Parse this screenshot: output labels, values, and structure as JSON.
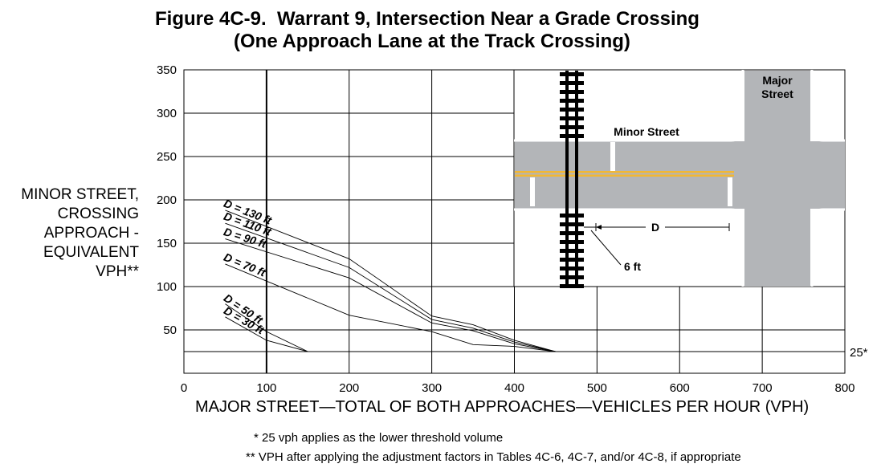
{
  "title_line1": "Figure 4C-9.  Warrant 9, Intersection Near a Grade Crossing",
  "title_line2": "(One Approach Lane at the Track Crossing)",
  "chart_data": {
    "type": "line",
    "xlabel": "MAJOR STREET—TOTAL OF BOTH APPROACHES—VEHICLES PER HOUR (VPH)",
    "ylabel_lines": [
      "MINOR STREET,",
      "CROSSING",
      "APPROACH -",
      "EQUIVALENT",
      "VPH**"
    ],
    "xlim": [
      0,
      800
    ],
    "ylim": [
      0,
      350
    ],
    "x_ticks": [
      0,
      100,
      200,
      300,
      400,
      500,
      600,
      700,
      800
    ],
    "y_ticks": [
      50,
      100,
      150,
      200,
      250,
      300,
      350
    ],
    "grid": true,
    "series": [
      {
        "name": "D = 130 ft",
        "points": [
          [
            50,
            188
          ],
          [
            200,
            132
          ],
          [
            300,
            66
          ],
          [
            350,
            56
          ],
          [
            400,
            38
          ],
          [
            450,
            25
          ]
        ]
      },
      {
        "name": "D = 110 ft",
        "points": [
          [
            50,
            173
          ],
          [
            200,
            122
          ],
          [
            300,
            62
          ],
          [
            350,
            52
          ],
          [
            400,
            36
          ],
          [
            450,
            25
          ]
        ]
      },
      {
        "name": "D = 90 ft",
        "points": [
          [
            50,
            155
          ],
          [
            200,
            110
          ],
          [
            300,
            58
          ],
          [
            350,
            49
          ],
          [
            400,
            34
          ],
          [
            450,
            25
          ]
        ]
      },
      {
        "name": "D = 70 ft",
        "points": [
          [
            50,
            126
          ],
          [
            200,
            67
          ],
          [
            300,
            48
          ],
          [
            350,
            33
          ],
          [
            400,
            31
          ],
          [
            450,
            25
          ]
        ]
      },
      {
        "name": "D = 50 ft",
        "points": [
          [
            50,
            80
          ],
          [
            100,
            48
          ],
          [
            150,
            25
          ],
          [
            450,
            25
          ]
        ]
      },
      {
        "name": "D = 30 ft",
        "points": [
          [
            50,
            65
          ],
          [
            100,
            38
          ],
          [
            150,
            25
          ],
          [
            450,
            25
          ]
        ]
      }
    ],
    "threshold": {
      "value": 25,
      "label": "25*"
    }
  },
  "inset": {
    "minor_street": "Minor Street",
    "major_street_line1": "Major",
    "major_street_line2": "Street",
    "distance_label": "D",
    "offset_label": "6 ft",
    "colors": {
      "road": "#b3b5b8",
      "centerline": "#f2b733",
      "marking": "#ffffff",
      "track": "#000000"
    }
  },
  "footnotes": {
    "note1": "*  25 vph applies as the lower threshold volume",
    "note2": "**  VPH after applying the adjustment factors in Tables 4C-6, 4C-7, and/or 4C-8, if appropriate"
  }
}
